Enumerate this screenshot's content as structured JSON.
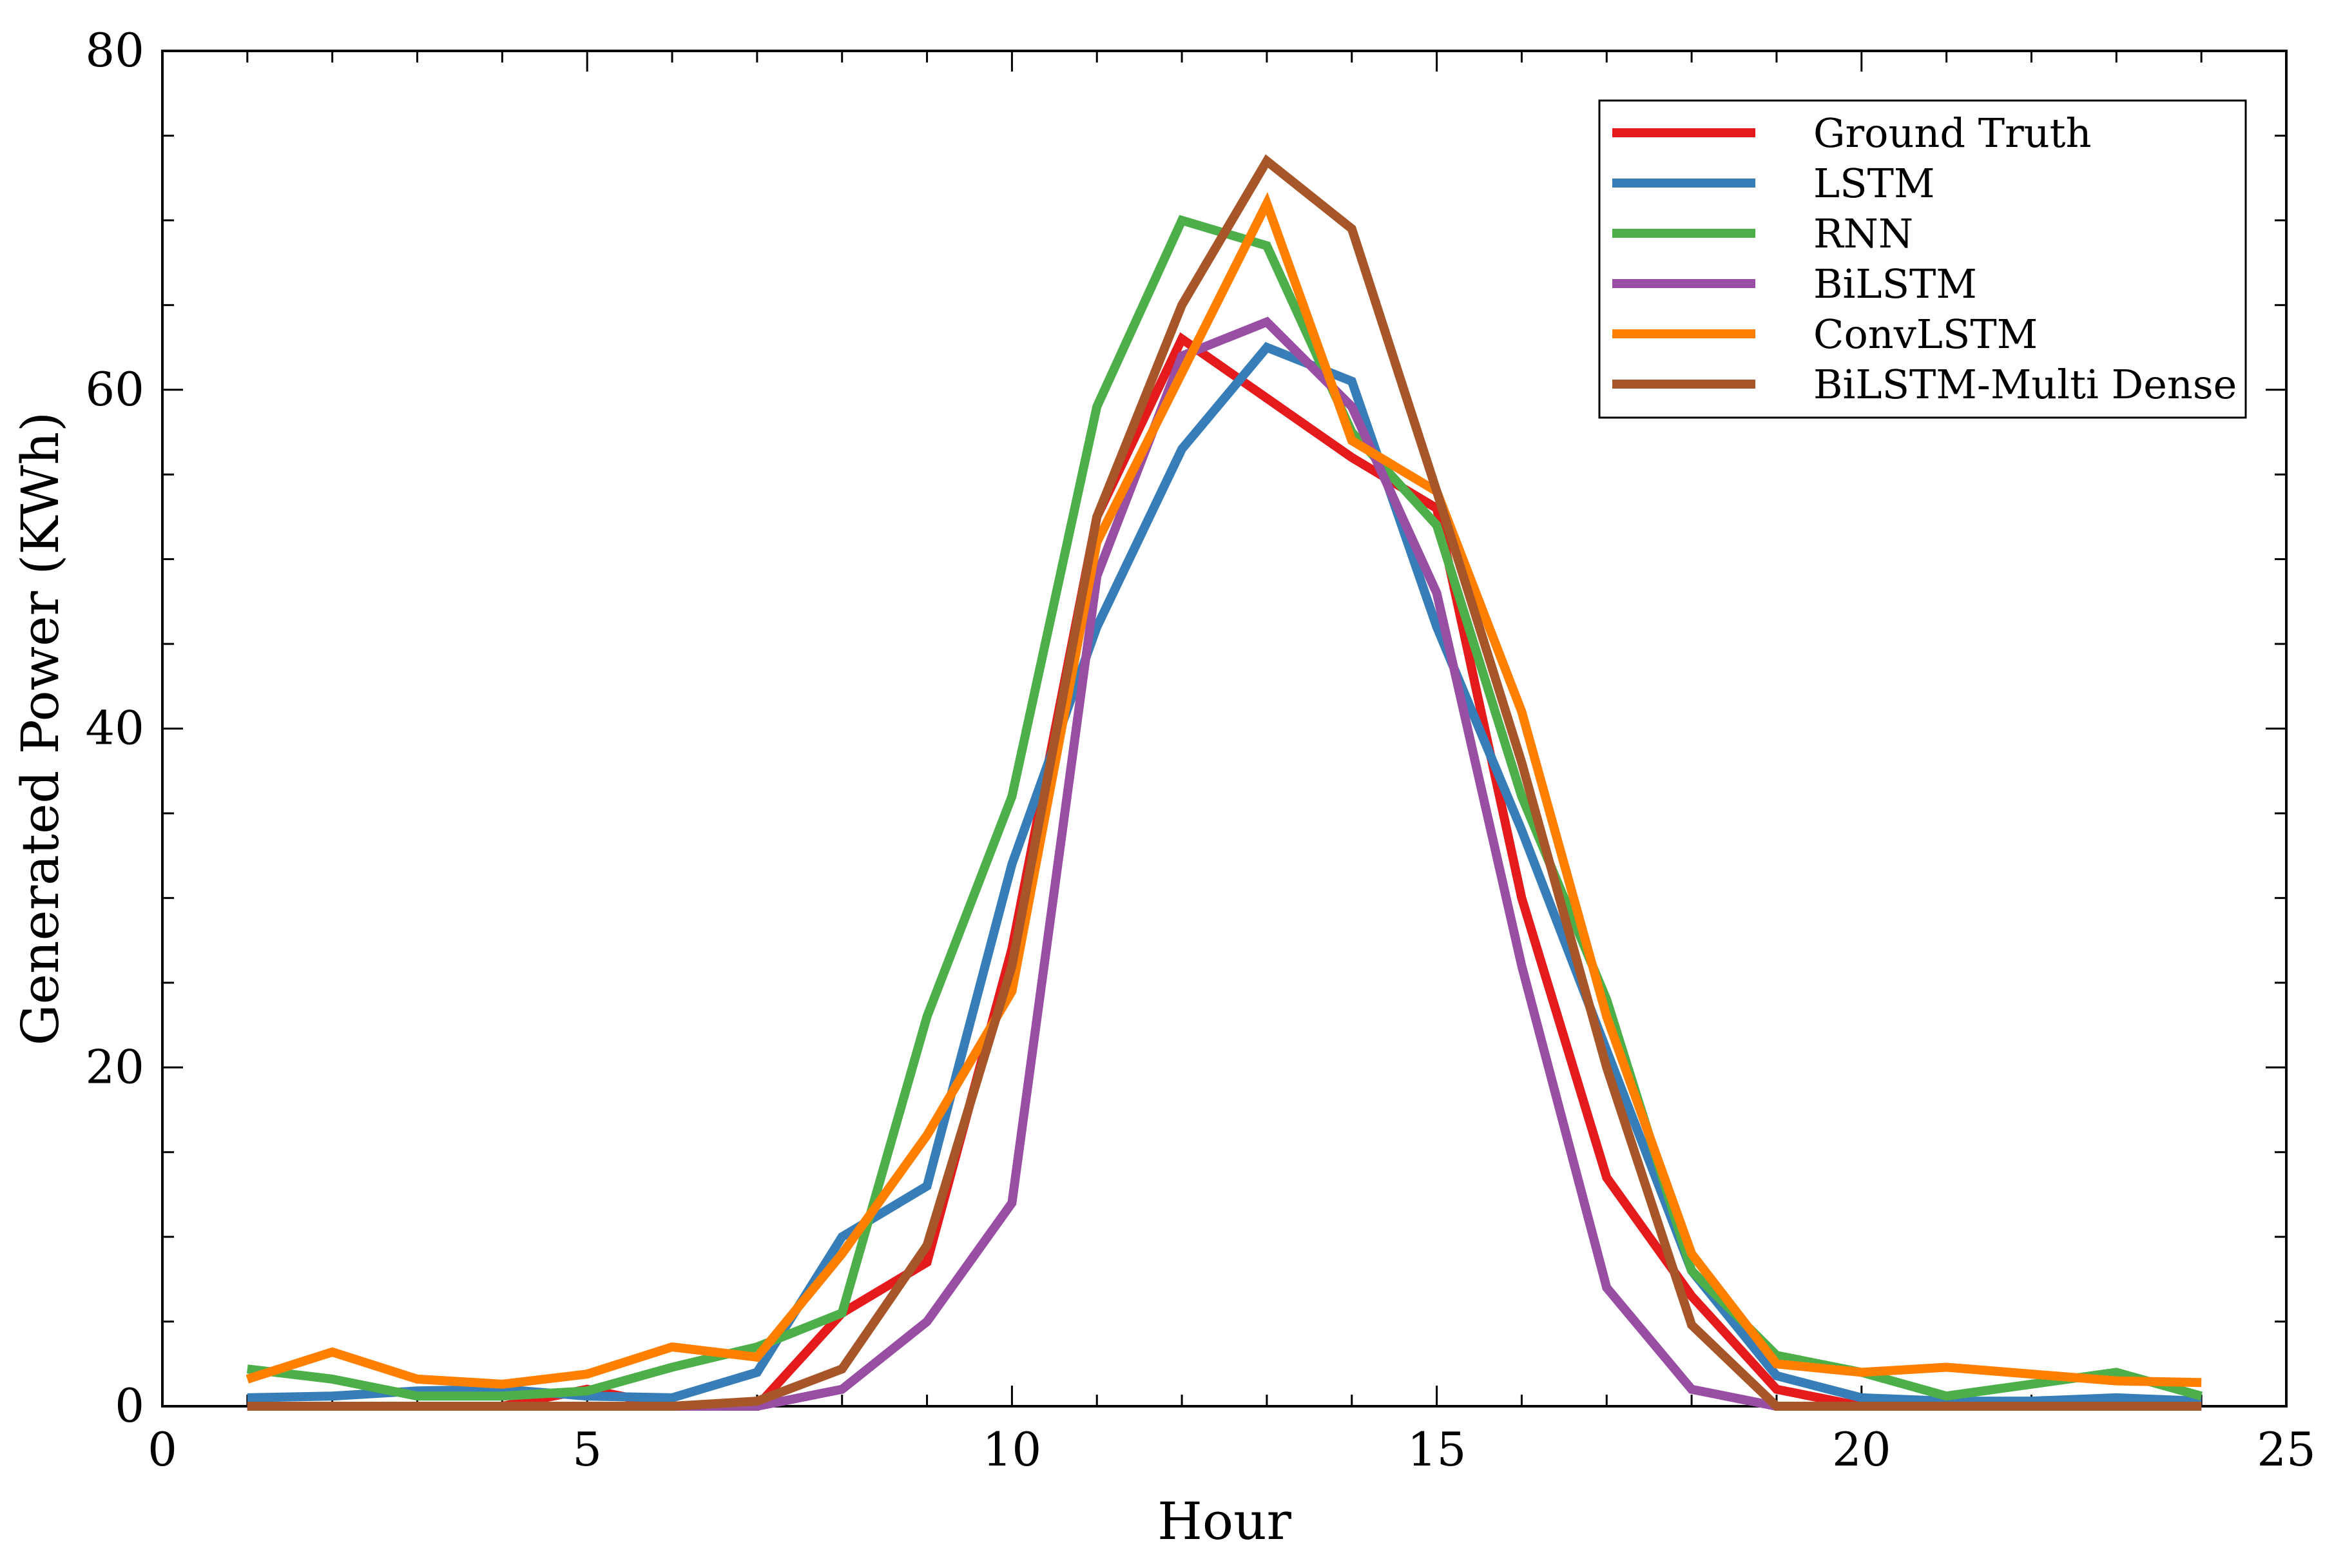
{
  "chart_data": {
    "type": "line",
    "title": "",
    "xlabel": "Hour",
    "ylabel": "Generated Power (KWh)",
    "xlim": [
      0,
      25
    ],
    "ylim": [
      0,
      80
    ],
    "xticks": [
      0,
      5,
      10,
      15,
      20,
      25
    ],
    "yticks": [
      0,
      20,
      40,
      60,
      80
    ],
    "grid": false,
    "legend_position": "top-right",
    "x": [
      1,
      2,
      3,
      4,
      5,
      6,
      7,
      8,
      9,
      10,
      11,
      12,
      13,
      14,
      15,
      16,
      17,
      18,
      19,
      20,
      21,
      22,
      23,
      24
    ],
    "series": [
      {
        "name": "Ground Truth",
        "color": "#e41a1c",
        "values": [
          0,
          0,
          0,
          0,
          1.0,
          0,
          0,
          5.5,
          8.5,
          27.0,
          52.5,
          63.0,
          59.5,
          56.0,
          53.0,
          30.0,
          13.5,
          6.5,
          1.0,
          0,
          0,
          0,
          0,
          0
        ]
      },
      {
        "name": "LSTM",
        "color": "#377eb8",
        "values": [
          0.5,
          0.6,
          0.9,
          1.0,
          0.6,
          0.5,
          2.0,
          10.0,
          13.0,
          32.0,
          46.0,
          56.5,
          62.5,
          60.5,
          46.0,
          34.0,
          21.0,
          8.0,
          1.8,
          0.5,
          0.3,
          0.3,
          0.5,
          0.3
        ]
      },
      {
        "name": "RNN",
        "color": "#4daf4a",
        "values": [
          2.2,
          1.6,
          0.6,
          0.6,
          0.9,
          2.3,
          3.5,
          5.5,
          23.0,
          36.0,
          59.0,
          70.0,
          68.5,
          57.5,
          52.0,
          36.0,
          24.0,
          8.0,
          3.0,
          2.0,
          0.6,
          1.3,
          2.0,
          0.6
        ]
      },
      {
        "name": "BiLSTM",
        "color": "#984ea3",
        "values": [
          0,
          0,
          0,
          0,
          0,
          0,
          0,
          1.0,
          5.0,
          12.0,
          49.0,
          62.0,
          64.0,
          59.0,
          48.0,
          26.0,
          7.0,
          1.0,
          0,
          0,
          0,
          0,
          0,
          0
        ]
      },
      {
        "name": "ConvLSTM",
        "color": "#ff7f00",
        "values": [
          1.6,
          3.2,
          1.6,
          1.3,
          1.9,
          3.5,
          2.9,
          9.0,
          16.0,
          24.5,
          51.0,
          61.0,
          71.0,
          57.0,
          54.0,
          41.0,
          23.0,
          9.0,
          2.5,
          2.0,
          2.3,
          1.9,
          1.5,
          1.4
        ]
      },
      {
        "name": "BiLSTM-Multi Dense",
        "color": "#a65628",
        "values": [
          0,
          0,
          0,
          0,
          0,
          0,
          0.3,
          2.2,
          9.5,
          26.0,
          52.5,
          65.0,
          73.5,
          69.5,
          54.0,
          38.0,
          20.0,
          4.8,
          0,
          0,
          0,
          0,
          0,
          0
        ]
      }
    ]
  }
}
